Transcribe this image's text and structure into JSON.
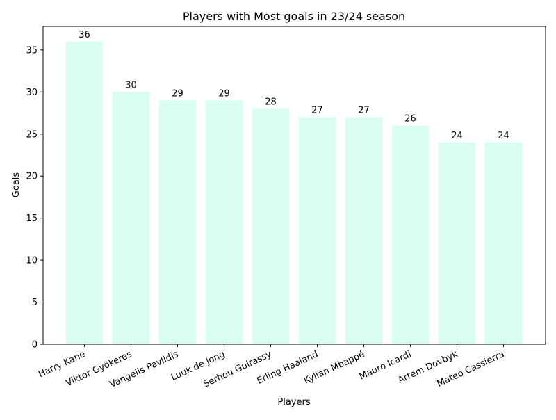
{
  "chart_data": {
    "type": "bar",
    "title": "Players with Most goals in 23/24 season",
    "xlabel": "Players",
    "ylabel": "Goals",
    "categories": [
      "Harry Kane",
      "Viktor Gyökeres",
      "Vangelis Pavlidis",
      "Luuk de Jong",
      "Serhou Guirassy",
      "Erling Haaland",
      "Kylian Mbappé",
      "Mauro Icardi",
      "Artem Dovbyk",
      "Mateo Cassierra"
    ],
    "values": [
      36,
      30,
      29,
      29,
      28,
      27,
      27,
      26,
      24,
      24
    ],
    "ylim": [
      0,
      37.8
    ],
    "yticks": [
      0,
      5,
      10,
      15,
      20,
      25,
      30,
      35
    ],
    "bar_color": "#d9fdf0",
    "grid": false,
    "legend": "none"
  }
}
